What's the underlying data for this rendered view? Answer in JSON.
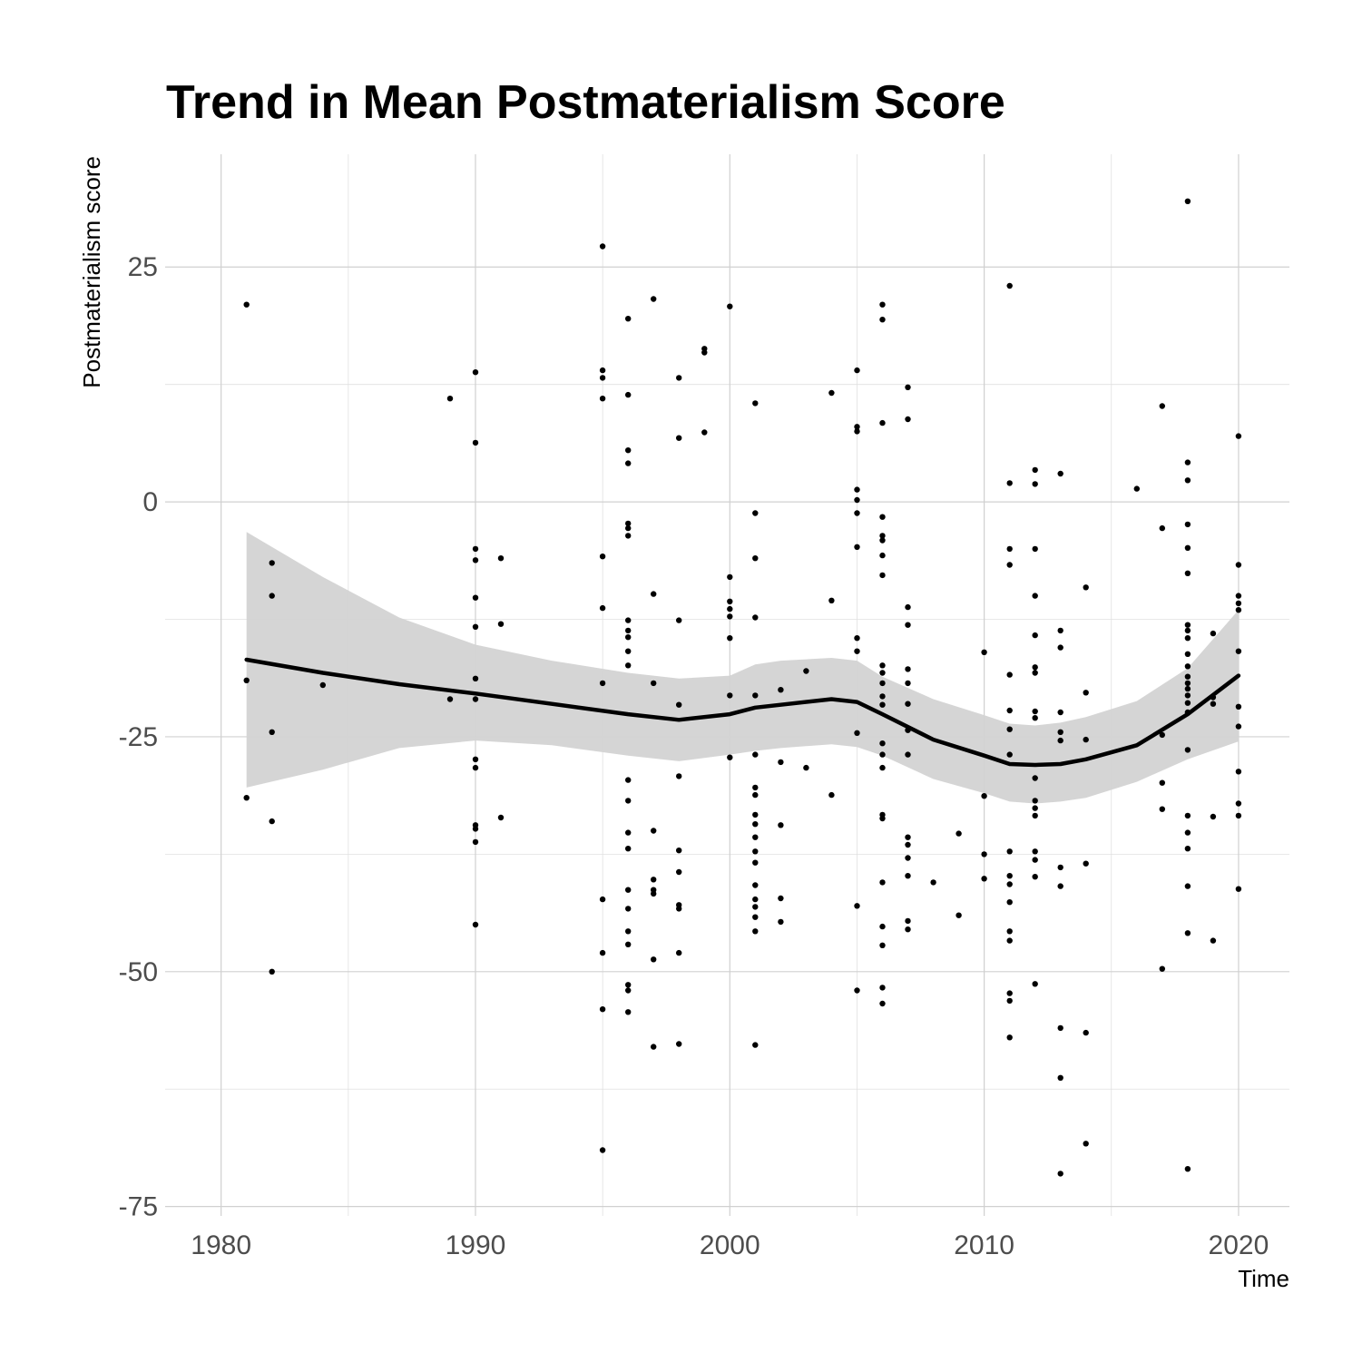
{
  "chart_data": {
    "type": "scatter",
    "title": "Trend in Mean Postmaterialism Score",
    "xlabel": "Time",
    "ylabel": "Postmaterialism score",
    "xlim": [
      1977.8,
      2022
    ],
    "ylim": [
      -76,
      37
    ],
    "x_ticks": [
      1980,
      1990,
      2000,
      2010,
      2020
    ],
    "x_tick_labels": [
      "1980",
      "1990",
      "2000",
      "2010",
      "2020"
    ],
    "y_ticks": [
      25,
      0,
      -25,
      -50,
      -75
    ],
    "y_tick_labels": [
      "25",
      "0",
      "-25",
      "-50",
      "-75"
    ],
    "grid": true,
    "legend": "none",
    "colors": {
      "points": "#000000",
      "smooth_line": "#000000",
      "ribbon": "#d3d3d3"
    },
    "points": [
      [
        1981,
        21
      ],
      [
        1981,
        -19
      ],
      [
        1981,
        -31.5
      ],
      [
        1982,
        -6.5
      ],
      [
        1982,
        -10
      ],
      [
        1982,
        -24.5
      ],
      [
        1982,
        -34
      ],
      [
        1982,
        -50
      ],
      [
        1984,
        -19.5
      ],
      [
        1989,
        11
      ],
      [
        1989,
        -21
      ],
      [
        1990,
        13.8
      ],
      [
        1990,
        6.3
      ],
      [
        1990,
        -5
      ],
      [
        1990,
        -6.2
      ],
      [
        1990,
        -10.2
      ],
      [
        1990,
        -13.3
      ],
      [
        1990,
        -18.8
      ],
      [
        1990,
        -21
      ],
      [
        1990,
        -27.4
      ],
      [
        1990,
        -28.3
      ],
      [
        1990,
        -34.4
      ],
      [
        1990,
        -34.8
      ],
      [
        1990,
        -36.2
      ],
      [
        1990,
        -45
      ],
      [
        1991,
        -6
      ],
      [
        1991,
        -13
      ],
      [
        1991,
        -33.6
      ],
      [
        1995,
        27.2
      ],
      [
        1995,
        14
      ],
      [
        1995,
        13.2
      ],
      [
        1995,
        11
      ],
      [
        1995,
        -5.8
      ],
      [
        1995,
        -11.3
      ],
      [
        1995,
        -19.3
      ],
      [
        1995,
        -42.3
      ],
      [
        1995,
        -48
      ],
      [
        1995,
        -54
      ],
      [
        1995,
        -69
      ],
      [
        1996,
        19.5
      ],
      [
        1996,
        11.4
      ],
      [
        1996,
        5.5
      ],
      [
        1996,
        4.1
      ],
      [
        1996,
        -2.3
      ],
      [
        1996,
        -2.8
      ],
      [
        1996,
        -3.6
      ],
      [
        1996,
        -12.6
      ],
      [
        1996,
        -13.7
      ],
      [
        1996,
        -14.4
      ],
      [
        1996,
        -15.9
      ],
      [
        1996,
        -17.4
      ],
      [
        1996,
        -29.6
      ],
      [
        1996,
        -31.8
      ],
      [
        1996,
        -35.2
      ],
      [
        1996,
        -36.9
      ],
      [
        1996,
        -41.3
      ],
      [
        1996,
        -43.3
      ],
      [
        1996,
        -45.7
      ],
      [
        1996,
        -47.1
      ],
      [
        1996,
        -51.4
      ],
      [
        1996,
        -52
      ],
      [
        1996,
        -54.3
      ],
      [
        1997,
        21.6
      ],
      [
        1997,
        -9.8
      ],
      [
        1997,
        -19.3
      ],
      [
        1997,
        -35
      ],
      [
        1997,
        -40.2
      ],
      [
        1997,
        -41.3
      ],
      [
        1997,
        -41.7
      ],
      [
        1997,
        -48.7
      ],
      [
        1997,
        -58
      ],
      [
        1998,
        13.2
      ],
      [
        1998,
        6.8
      ],
      [
        1998,
        -12.6
      ],
      [
        1998,
        -21.6
      ],
      [
        1998,
        -29.2
      ],
      [
        1998,
        -37.1
      ],
      [
        1998,
        -39.4
      ],
      [
        1998,
        -42.9
      ],
      [
        1998,
        -43.3
      ],
      [
        1998,
        -48
      ],
      [
        1998,
        -57.7
      ],
      [
        1999,
        16.3
      ],
      [
        1999,
        15.9
      ],
      [
        1999,
        7.4
      ],
      [
        2000,
        20.8
      ],
      [
        2000,
        -8
      ],
      [
        2000,
        -10.6
      ],
      [
        2000,
        -11.4
      ],
      [
        2000,
        -12.2
      ],
      [
        2000,
        -14.5
      ],
      [
        2000,
        -20.6
      ],
      [
        2000,
        -27.2
      ],
      [
        2001,
        10.5
      ],
      [
        2001,
        -1.2
      ],
      [
        2001,
        -6
      ],
      [
        2001,
        -12.3
      ],
      [
        2001,
        -20.6
      ],
      [
        2001,
        -26.9
      ],
      [
        2001,
        -30.4
      ],
      [
        2001,
        -31.2
      ],
      [
        2001,
        -33.3
      ],
      [
        2001,
        -34.3
      ],
      [
        2001,
        -35.7
      ],
      [
        2001,
        -37.2
      ],
      [
        2001,
        -38.4
      ],
      [
        2001,
        -40.8
      ],
      [
        2001,
        -42.3
      ],
      [
        2001,
        -43.1
      ],
      [
        2001,
        -44.2
      ],
      [
        2001,
        -45.7
      ],
      [
        2001,
        -57.8
      ],
      [
        2002,
        -20
      ],
      [
        2002,
        -27.7
      ],
      [
        2002,
        -34.4
      ],
      [
        2002,
        -42.2
      ],
      [
        2002,
        -44.7
      ],
      [
        2003,
        -18
      ],
      [
        2003,
        -28.3
      ],
      [
        2004,
        11.6
      ],
      [
        2004,
        -10.5
      ],
      [
        2004,
        -31.2
      ],
      [
        2005,
        14
      ],
      [
        2005,
        8
      ],
      [
        2005,
        7.5
      ],
      [
        2005,
        1.3
      ],
      [
        2005,
        0.2
      ],
      [
        2005,
        -1.2
      ],
      [
        2005,
        -4.8
      ],
      [
        2005,
        -14.5
      ],
      [
        2005,
        -15.9
      ],
      [
        2005,
        -24.6
      ],
      [
        2005,
        -43
      ],
      [
        2005,
        -52
      ],
      [
        2006,
        21
      ],
      [
        2006,
        19.4
      ],
      [
        2006,
        8.4
      ],
      [
        2006,
        -1.6
      ],
      [
        2006,
        -3.6
      ],
      [
        2006,
        -4.1
      ],
      [
        2006,
        -5.7
      ],
      [
        2006,
        -7.8
      ],
      [
        2006,
        -17.4
      ],
      [
        2006,
        -18.2
      ],
      [
        2006,
        -19.3
      ],
      [
        2006,
        -20.7
      ],
      [
        2006,
        -21.6
      ],
      [
        2006,
        -25.7
      ],
      [
        2006,
        -26.9
      ],
      [
        2006,
        -28.3
      ],
      [
        2006,
        -33.3
      ],
      [
        2006,
        -33.7
      ],
      [
        2006,
        -40.5
      ],
      [
        2006,
        -45.2
      ],
      [
        2006,
        -47.2
      ],
      [
        2006,
        -51.7
      ],
      [
        2006,
        -53.4
      ],
      [
        2007,
        12.2
      ],
      [
        2007,
        8.8
      ],
      [
        2007,
        -11.2
      ],
      [
        2007,
        -13.1
      ],
      [
        2007,
        -17.8
      ],
      [
        2007,
        -19.3
      ],
      [
        2007,
        -21.5
      ],
      [
        2007,
        -24.3
      ],
      [
        2007,
        -26.9
      ],
      [
        2007,
        -35.7
      ],
      [
        2007,
        -36.5
      ],
      [
        2007,
        -37.9
      ],
      [
        2007,
        -39.8
      ],
      [
        2007,
        -44.6
      ],
      [
        2007,
        -45.5
      ],
      [
        2008,
        -40.5
      ],
      [
        2009,
        -35.3
      ],
      [
        2009,
        -44
      ],
      [
        2010,
        -16
      ],
      [
        2010,
        -31.3
      ],
      [
        2010,
        -37.5
      ],
      [
        2010,
        -40.1
      ],
      [
        2011,
        23
      ],
      [
        2011,
        2
      ],
      [
        2011,
        -5
      ],
      [
        2011,
        -6.7
      ],
      [
        2011,
        -18.4
      ],
      [
        2011,
        -22.2
      ],
      [
        2011,
        -24.2
      ],
      [
        2011,
        -26.9
      ],
      [
        2011,
        -37.2
      ],
      [
        2011,
        -39.8
      ],
      [
        2011,
        -40.7
      ],
      [
        2011,
        -42.6
      ],
      [
        2011,
        -45.7
      ],
      [
        2011,
        -46.7
      ],
      [
        2011,
        -52.3
      ],
      [
        2011,
        -53.1
      ],
      [
        2011,
        -57
      ],
      [
        2012,
        3.4
      ],
      [
        2012,
        1.9
      ],
      [
        2012,
        -5
      ],
      [
        2012,
        -10
      ],
      [
        2012,
        -14.2
      ],
      [
        2012,
        -17.6
      ],
      [
        2012,
        -18.2
      ],
      [
        2012,
        -22.3
      ],
      [
        2012,
        -23
      ],
      [
        2012,
        -29.4
      ],
      [
        2012,
        -31.8
      ],
      [
        2012,
        -32.6
      ],
      [
        2012,
        -33.4
      ],
      [
        2012,
        -37.2
      ],
      [
        2012,
        -38.1
      ],
      [
        2012,
        -39.9
      ],
      [
        2012,
        -51.3
      ],
      [
        2013,
        3
      ],
      [
        2013,
        -13.7
      ],
      [
        2013,
        -15.5
      ],
      [
        2013,
        -22.4
      ],
      [
        2013,
        -24.5
      ],
      [
        2013,
        -25.4
      ],
      [
        2013,
        -38.9
      ],
      [
        2013,
        -40.9
      ],
      [
        2013,
        -56
      ],
      [
        2013,
        -61.3
      ],
      [
        2013,
        -71.5
      ],
      [
        2014,
        -9.1
      ],
      [
        2014,
        -20.3
      ],
      [
        2014,
        -25.3
      ],
      [
        2014,
        -38.5
      ],
      [
        2014,
        -56.5
      ],
      [
        2014,
        -68.3
      ],
      [
        2016,
        1.4
      ],
      [
        2017,
        10.2
      ],
      [
        2017,
        -2.8
      ],
      [
        2017,
        -24.8
      ],
      [
        2017,
        -29.9
      ],
      [
        2017,
        -32.7
      ],
      [
        2017,
        -49.7
      ],
      [
        2018,
        32
      ],
      [
        2018,
        4.2
      ],
      [
        2018,
        2.3
      ],
      [
        2018,
        -2.4
      ],
      [
        2018,
        -4.9
      ],
      [
        2018,
        -7.6
      ],
      [
        2018,
        -13.1
      ],
      [
        2018,
        -13.7
      ],
      [
        2018,
        -14.5
      ],
      [
        2018,
        -16.2
      ],
      [
        2018,
        -17.5
      ],
      [
        2018,
        -18.6
      ],
      [
        2018,
        -19.3
      ],
      [
        2018,
        -19.9
      ],
      [
        2018,
        -20.6
      ],
      [
        2018,
        -21.4
      ],
      [
        2018,
        -22.4
      ],
      [
        2018,
        -26.4
      ],
      [
        2018,
        -33.4
      ],
      [
        2018,
        -35.2
      ],
      [
        2018,
        -36.9
      ],
      [
        2018,
        -40.9
      ],
      [
        2018,
        -45.9
      ],
      [
        2018,
        -71
      ],
      [
        2019,
        -14
      ],
      [
        2019,
        -20.8
      ],
      [
        2019,
        -21.5
      ],
      [
        2019,
        -33.5
      ],
      [
        2019,
        -46.7
      ],
      [
        2020,
        7
      ],
      [
        2020,
        -6.7
      ],
      [
        2020,
        -10
      ],
      [
        2020,
        -10.8
      ],
      [
        2020,
        -11.5
      ],
      [
        2020,
        -15.9
      ],
      [
        2020,
        -21.8
      ],
      [
        2020,
        -23.9
      ],
      [
        2020,
        -28.7
      ],
      [
        2020,
        -32.1
      ],
      [
        2020,
        -33.4
      ],
      [
        2020,
        -41.2
      ]
    ],
    "smooth_x": [
      1981,
      1984,
      1987,
      1990,
      1993,
      1996,
      1998,
      2000,
      2001,
      2002,
      2004,
      2005,
      2006,
      2008,
      2010,
      2011,
      2012,
      2013,
      2014,
      2016,
      2018,
      2020
    ],
    "smooth_y": [
      -16.8,
      -18.2,
      -19.4,
      -20.4,
      -21.5,
      -22.6,
      -23.2,
      -22.6,
      -21.9,
      -21.6,
      -21.0,
      -21.3,
      -22.6,
      -25.3,
      -27.0,
      -27.9,
      -28.0,
      -27.9,
      -27.4,
      -25.9,
      -22.6,
      -18.5
    ],
    "smooth_upper": [
      -3.2,
      -8.0,
      -12.3,
      -15.2,
      -16.9,
      -18.2,
      -18.8,
      -18.5,
      -17.3,
      -16.9,
      -16.6,
      -16.9,
      -18.6,
      -21.0,
      -22.7,
      -23.6,
      -23.8,
      -23.5,
      -22.9,
      -21.2,
      -17.7,
      -11.5
    ],
    "smooth_lower": [
      -30.4,
      -28.5,
      -26.2,
      -25.4,
      -25.9,
      -27.0,
      -27.6,
      -26.9,
      -26.5,
      -26.2,
      -25.8,
      -26.1,
      -27.0,
      -29.5,
      -31.0,
      -31.9,
      -32.1,
      -31.9,
      -31.5,
      -29.8,
      -27.4,
      -25.5
    ]
  }
}
